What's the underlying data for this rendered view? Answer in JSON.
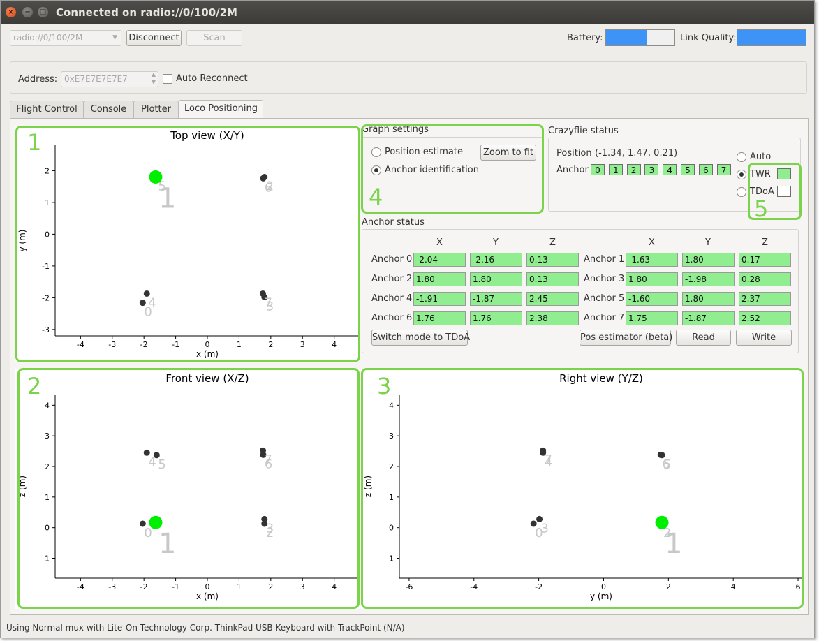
{
  "window": {
    "title": "Connected on radio://0/100/2M",
    "close_icon": "close-icon",
    "minimize_icon": "minimize-icon",
    "maximize_icon": "maximize-icon"
  },
  "toolbar": {
    "interface_select": "radio://0/100/2M",
    "disconnect_label": "Disconnect",
    "scan_label": "Scan",
    "battery_label": "Battery:",
    "battery_level": 0.6,
    "link_quality_label": "Link Quality:",
    "link_quality_level": 1.0,
    "bar_color": "#3d94f6"
  },
  "address": {
    "label": "Address:",
    "value": "0xE7E7E7E7E7",
    "auto_reconnect_label": "Auto Reconnect",
    "auto_reconnect_checked": false
  },
  "tabs": [
    {
      "label": "Flight Control",
      "active": false
    },
    {
      "label": "Console",
      "active": false
    },
    {
      "label": "Plotter",
      "active": false
    },
    {
      "label": "Loco Positioning",
      "active": true
    }
  ],
  "graph_settings": {
    "title": "Graph settings",
    "position_estimate_label": "Position estimate",
    "anchor_identification_label": "Anchor identification",
    "selected": "anchor_identification",
    "zoom_label": "Zoom to fit"
  },
  "crazyflie_status": {
    "title": "Crazyflie status",
    "position_label": "Position",
    "position_value": "(-1.34, 1.47, 0.21)",
    "anchor_label": "Anchor",
    "anchors": [
      "0",
      "1",
      "2",
      "3",
      "4",
      "5",
      "6",
      "7"
    ],
    "mode_auto": "Auto",
    "mode_twr": "TWR",
    "mode_tdoa": "TDoA",
    "selected_mode": "TWR",
    "twr_indicator_color": "#90ee90"
  },
  "anchor_status": {
    "title": "Anchor status",
    "col_x": "X",
    "col_y": "Y",
    "col_z": "Z",
    "left": [
      {
        "name": "Anchor 0",
        "x": "-2.04",
        "y": "-2.16",
        "z": "0.13"
      },
      {
        "name": "Anchor 2",
        "x": "1.80",
        "y": "1.80",
        "z": "0.13"
      },
      {
        "name": "Anchor 4",
        "x": "-1.91",
        "y": "-1.87",
        "z": "2.45"
      },
      {
        "name": "Anchor 6",
        "x": "1.76",
        "y": "1.76",
        "z": "2.38"
      }
    ],
    "right": [
      {
        "name": "Anchor 1",
        "x": "-1.63",
        "y": "1.80",
        "z": "0.17"
      },
      {
        "name": "Anchor 3",
        "x": "1.80",
        "y": "-1.98",
        "z": "0.28"
      },
      {
        "name": "Anchor 5",
        "x": "-1.60",
        "y": "1.80",
        "z": "2.37"
      },
      {
        "name": "Anchor 7",
        "x": "1.75",
        "y": "-1.87",
        "z": "2.52"
      }
    ],
    "switch_mode_label": "Switch mode to TDoA",
    "pos_estimator_label": "Pos estimator (beta)",
    "read_label": "Read",
    "write_label": "Write",
    "field_color": "#90ee90"
  },
  "highlights": [
    "1",
    "2",
    "3",
    "4",
    "5"
  ],
  "status_bar": "Using Normal mux with Lite-On Technology Corp. ThinkPad USB Keyboard with TrackPoint (N/A)",
  "chart_data": [
    {
      "type": "scatter",
      "title": "Top view (X/Y)",
      "xlabel": "x (m)",
      "ylabel": "y (m)",
      "xticks": [
        -4,
        -3,
        -2,
        -1,
        0,
        1,
        2,
        3,
        4
      ],
      "yticks": [
        -3,
        -2,
        -1,
        0,
        1,
        2
      ],
      "xlim": [
        -4.8,
        4.8
      ],
      "ylim": [
        -3.2,
        2.8
      ],
      "anchors": [
        {
          "label": "0",
          "x": -2.04,
          "y": -2.16
        },
        {
          "label": "4",
          "x": -1.91,
          "y": -1.87
        },
        {
          "label": "5",
          "x": -1.6,
          "y": 1.8
        },
        {
          "label": "6",
          "x": 1.76,
          "y": 1.76
        },
        {
          "label": "2",
          "x": 1.8,
          "y": 1.8
        },
        {
          "label": "7",
          "x": 1.75,
          "y": -1.87
        },
        {
          "label": "3",
          "x": 1.8,
          "y": -1.98
        }
      ],
      "highlight": {
        "label": "1",
        "x": -1.63,
        "y": 1.8
      },
      "point_color": "#333333",
      "highlight_color": "#00ee00"
    },
    {
      "type": "scatter",
      "title": "Front view (X/Z)",
      "xlabel": "x (m)",
      "ylabel": "z (m)",
      "xticks": [
        -4,
        -3,
        -2,
        -1,
        0,
        1,
        2,
        3,
        4
      ],
      "yticks": [
        -1,
        0,
        1,
        2,
        3,
        4
      ],
      "xlim": [
        -4.8,
        4.8
      ],
      "ylim": [
        -1.65,
        4.35
      ],
      "anchors": [
        {
          "label": "0",
          "x": -2.04,
          "y": 0.13
        },
        {
          "label": "4",
          "x": -1.91,
          "y": 2.45
        },
        {
          "label": "5",
          "x": -1.6,
          "y": 2.37
        },
        {
          "label": "7",
          "x": 1.75,
          "y": 2.52
        },
        {
          "label": "6",
          "x": 1.76,
          "y": 2.38
        },
        {
          "label": "3",
          "x": 1.8,
          "y": 0.28
        },
        {
          "label": "2",
          "x": 1.8,
          "y": 0.13
        }
      ],
      "highlight": {
        "label": "1",
        "x": -1.63,
        "y": 0.17
      },
      "point_color": "#333333",
      "highlight_color": "#00ee00"
    },
    {
      "type": "scatter",
      "title": "Right view (Y/Z)",
      "xlabel": "y (m)",
      "ylabel": "z (m)",
      "xticks": [
        -6,
        -4,
        -2,
        0,
        2,
        4,
        6
      ],
      "yticks": [
        -1,
        0,
        1,
        2,
        3,
        4
      ],
      "xlim": [
        -6.3,
        6.15
      ],
      "ylim": [
        -1.65,
        4.35
      ],
      "anchors": [
        {
          "label": "0",
          "x": -2.16,
          "y": 0.13
        },
        {
          "label": "3",
          "x": -1.98,
          "y": 0.28
        },
        {
          "label": "7",
          "x": -1.87,
          "y": 2.52
        },
        {
          "label": "4",
          "x": -1.87,
          "y": 2.45
        },
        {
          "label": "5",
          "x": 1.8,
          "y": 2.37
        },
        {
          "label": "6",
          "x": 1.76,
          "y": 2.38
        },
        {
          "label": "2",
          "x": 1.8,
          "y": 0.13
        }
      ],
      "highlight": {
        "label": "1",
        "x": 1.8,
        "y": 0.17
      },
      "point_color": "#333333",
      "highlight_color": "#00ee00"
    }
  ]
}
